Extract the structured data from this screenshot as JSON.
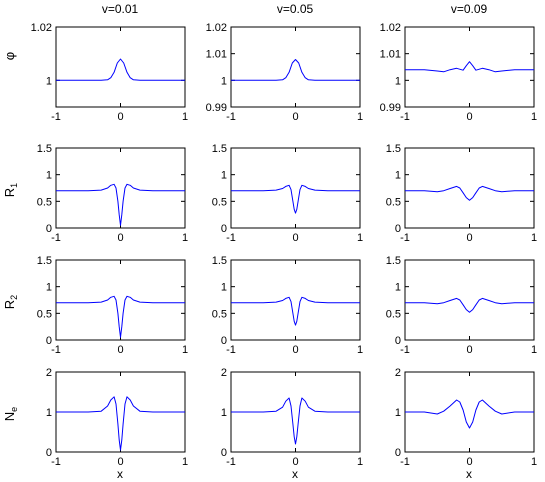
{
  "chart_data": {
    "type": "line",
    "layout": "4x3 grid of line plots",
    "line_color": "#0000ff",
    "axis_color": "#000000",
    "grid": false,
    "column_titles": [
      "v=0.01",
      "v=0.05",
      "v=0.09"
    ],
    "row_ylabels": [
      {
        "main": "φ",
        "sub": ""
      },
      {
        "main": "R",
        "sub": "1"
      },
      {
        "main": "R",
        "sub": "2"
      },
      {
        "main": "N",
        "sub": "e"
      }
    ],
    "xlabel": "x",
    "xlim": [
      -1,
      1
    ],
    "xticks": [
      "-1",
      "0",
      "1"
    ],
    "row_axes": [
      {
        "ylim_per_column": [
          [
            0.99,
            1.02
          ],
          [
            0.99,
            1.02
          ],
          [
            0.99,
            1.02
          ]
        ],
        "yticks_per_column": [
          [
            "1",
            "1.02"
          ],
          [
            "0.99",
            "1",
            "1.01",
            "1.02"
          ],
          [
            "0.99",
            "1",
            "1.01",
            "1.02"
          ]
        ]
      },
      {
        "ylim_per_column": [
          [
            0,
            1.5
          ],
          [
            0,
            1.5
          ],
          [
            0,
            1.5
          ]
        ],
        "yticks_per_column": [
          [
            "0",
            "0.5",
            "1",
            "1.5"
          ],
          [
            "0",
            "0.5",
            "1",
            "1.5"
          ],
          [
            "0",
            "0.5",
            "1",
            "1.5"
          ]
        ]
      },
      {
        "ylim_per_column": [
          [
            0,
            1.5
          ],
          [
            0,
            1.5
          ],
          [
            0,
            1.5
          ]
        ],
        "yticks_per_column": [
          [
            "0",
            "0.5",
            "1",
            "1.5"
          ],
          [
            "0",
            "0.5",
            "1",
            "1.5"
          ],
          [
            "0",
            "0.5",
            "1",
            "1.5"
          ]
        ]
      },
      {
        "ylim_per_column": [
          [
            0,
            2
          ],
          [
            0,
            2
          ],
          [
            0,
            2
          ]
        ],
        "yticks_per_column": [
          [
            "0",
            "1",
            "2"
          ],
          [
            "0",
            "1",
            "2"
          ],
          [
            "0",
            "1",
            "2"
          ]
        ]
      }
    ],
    "panels": [
      [
        {
          "x": [
            -1,
            -0.5,
            -0.3,
            -0.2,
            -0.15,
            -0.1,
            -0.05,
            0,
            0.05,
            0.1,
            0.15,
            0.2,
            0.3,
            0.5,
            1
          ],
          "y": [
            1.0,
            1.0,
            1.0,
            1.0002,
            1.001,
            1.003,
            1.0065,
            1.008,
            1.0065,
            1.003,
            1.001,
            1.0002,
            1.0,
            1.0,
            1.0
          ]
        },
        {
          "x": [
            -1,
            -0.5,
            -0.3,
            -0.2,
            -0.15,
            -0.1,
            -0.05,
            0,
            0.05,
            0.1,
            0.15,
            0.2,
            0.3,
            0.5,
            1
          ],
          "y": [
            1.0,
            1.0,
            1.0,
            1.0002,
            1.001,
            1.003,
            1.0065,
            1.0078,
            1.0065,
            1.003,
            1.001,
            1.0002,
            1.0,
            1.0,
            1.0
          ]
        },
        {
          "x": [
            -1,
            -0.7,
            -0.5,
            -0.4,
            -0.3,
            -0.2,
            -0.1,
            -0.05,
            0,
            0.05,
            0.1,
            0.2,
            0.3,
            0.4,
            0.5,
            0.7,
            1
          ],
          "y": [
            1.004,
            1.004,
            1.0035,
            1.0032,
            1.004,
            1.0045,
            1.0038,
            1.0055,
            1.007,
            1.0055,
            1.0038,
            1.0045,
            1.004,
            1.0032,
            1.0035,
            1.004,
            1.004
          ]
        }
      ],
      [
        {
          "x": [
            -1,
            -0.5,
            -0.3,
            -0.2,
            -0.15,
            -0.1,
            -0.07,
            -0.04,
            -0.02,
            0,
            0.02,
            0.04,
            0.07,
            0.1,
            0.15,
            0.2,
            0.3,
            0.5,
            1
          ],
          "y": [
            0.7,
            0.7,
            0.71,
            0.75,
            0.8,
            0.82,
            0.75,
            0.5,
            0.25,
            0.05,
            0.25,
            0.5,
            0.75,
            0.82,
            0.8,
            0.75,
            0.71,
            0.7,
            0.7
          ]
        },
        {
          "x": [
            -1,
            -0.5,
            -0.3,
            -0.2,
            -0.15,
            -0.1,
            -0.07,
            -0.04,
            -0.02,
            0,
            0.02,
            0.04,
            0.07,
            0.1,
            0.15,
            0.2,
            0.3,
            0.5,
            1
          ],
          "y": [
            0.7,
            0.7,
            0.71,
            0.74,
            0.78,
            0.8,
            0.72,
            0.5,
            0.35,
            0.28,
            0.35,
            0.5,
            0.72,
            0.8,
            0.78,
            0.74,
            0.71,
            0.7,
            0.7
          ]
        },
        {
          "x": [
            -1,
            -0.7,
            -0.5,
            -0.4,
            -0.3,
            -0.2,
            -0.15,
            -0.1,
            -0.05,
            0,
            0.05,
            0.1,
            0.15,
            0.2,
            0.3,
            0.4,
            0.5,
            0.7,
            1
          ],
          "y": [
            0.7,
            0.7,
            0.68,
            0.7,
            0.74,
            0.78,
            0.75,
            0.66,
            0.57,
            0.52,
            0.57,
            0.66,
            0.75,
            0.78,
            0.74,
            0.7,
            0.68,
            0.7,
            0.7
          ]
        }
      ],
      [
        {
          "x": [
            -1,
            -0.5,
            -0.3,
            -0.2,
            -0.15,
            -0.1,
            -0.07,
            -0.04,
            -0.02,
            0,
            0.02,
            0.04,
            0.07,
            0.1,
            0.15,
            0.2,
            0.3,
            0.5,
            1
          ],
          "y": [
            0.7,
            0.7,
            0.71,
            0.75,
            0.8,
            0.82,
            0.75,
            0.5,
            0.25,
            0.05,
            0.25,
            0.5,
            0.75,
            0.82,
            0.8,
            0.75,
            0.71,
            0.7,
            0.7
          ]
        },
        {
          "x": [
            -1,
            -0.5,
            -0.3,
            -0.2,
            -0.15,
            -0.1,
            -0.07,
            -0.04,
            -0.02,
            0,
            0.02,
            0.04,
            0.07,
            0.1,
            0.15,
            0.2,
            0.3,
            0.5,
            1
          ],
          "y": [
            0.7,
            0.7,
            0.71,
            0.74,
            0.78,
            0.8,
            0.72,
            0.5,
            0.35,
            0.28,
            0.35,
            0.5,
            0.72,
            0.8,
            0.78,
            0.74,
            0.71,
            0.7,
            0.7
          ]
        },
        {
          "x": [
            -1,
            -0.7,
            -0.5,
            -0.4,
            -0.3,
            -0.2,
            -0.15,
            -0.1,
            -0.05,
            0,
            0.05,
            0.1,
            0.15,
            0.2,
            0.3,
            0.4,
            0.5,
            0.7,
            1
          ],
          "y": [
            0.7,
            0.7,
            0.68,
            0.7,
            0.74,
            0.78,
            0.75,
            0.66,
            0.57,
            0.52,
            0.57,
            0.66,
            0.75,
            0.78,
            0.74,
            0.7,
            0.68,
            0.7,
            0.7
          ]
        }
      ],
      [
        {
          "x": [
            -1,
            -0.5,
            -0.3,
            -0.2,
            -0.15,
            -0.1,
            -0.07,
            -0.04,
            -0.02,
            0,
            0.02,
            0.04,
            0.07,
            0.1,
            0.15,
            0.2,
            0.3,
            0.5,
            1
          ],
          "y": [
            1.0,
            1.0,
            1.02,
            1.15,
            1.3,
            1.38,
            1.2,
            0.7,
            0.3,
            0.05,
            0.3,
            0.7,
            1.2,
            1.38,
            1.3,
            1.15,
            1.02,
            1.0,
            1.0
          ]
        },
        {
          "x": [
            -1,
            -0.5,
            -0.3,
            -0.2,
            -0.15,
            -0.1,
            -0.07,
            -0.04,
            -0.02,
            0,
            0.02,
            0.04,
            0.07,
            0.1,
            0.15,
            0.2,
            0.3,
            0.5,
            1
          ],
          "y": [
            1.0,
            1.0,
            1.02,
            1.12,
            1.27,
            1.35,
            1.15,
            0.7,
            0.38,
            0.2,
            0.38,
            0.7,
            1.15,
            1.35,
            1.27,
            1.12,
            1.02,
            1.0,
            1.0
          ]
        },
        {
          "x": [
            -1,
            -0.7,
            -0.5,
            -0.4,
            -0.3,
            -0.2,
            -0.15,
            -0.1,
            -0.05,
            0,
            0.05,
            0.1,
            0.15,
            0.2,
            0.3,
            0.4,
            0.5,
            0.7,
            1
          ],
          "y": [
            1.0,
            1.0,
            0.95,
            1.02,
            1.15,
            1.3,
            1.25,
            1.05,
            0.75,
            0.6,
            0.75,
            1.05,
            1.25,
            1.3,
            1.15,
            1.02,
            0.95,
            1.0,
            1.0
          ]
        }
      ]
    ]
  }
}
